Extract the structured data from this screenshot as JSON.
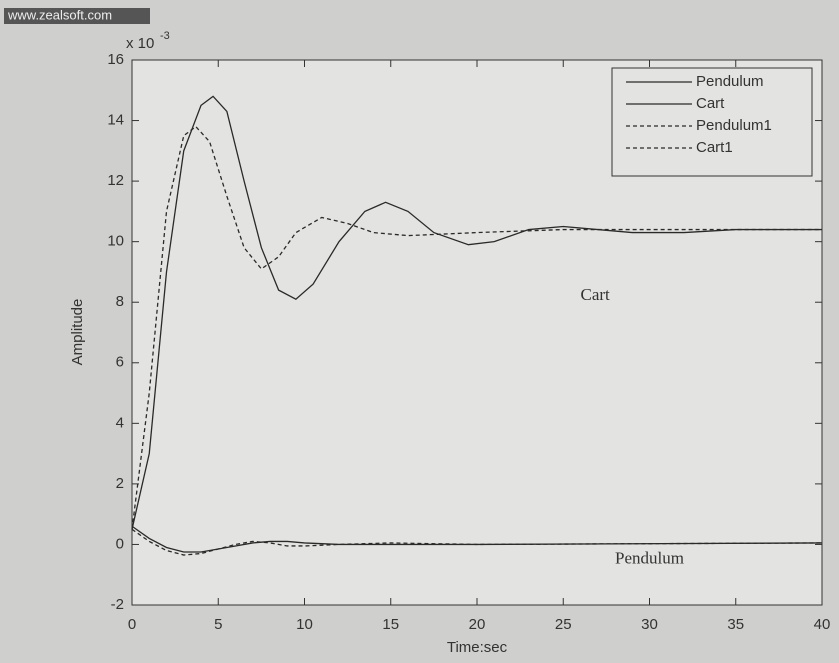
{
  "chart_data": {
    "type": "line",
    "watermark": "www.zealsoft.com",
    "xlabel": "Time:sec",
    "ylabel": "Amplitude",
    "y_scale_label": "x 10",
    "y_scale_exponent": "-3",
    "xlim": [
      0,
      40
    ],
    "ylim": [
      -2,
      16
    ],
    "xticks": [
      0,
      5,
      10,
      15,
      20,
      25,
      30,
      35,
      40
    ],
    "yticks": [
      -2,
      0,
      2,
      4,
      6,
      8,
      10,
      12,
      14,
      16
    ],
    "legend": "upper right",
    "annotations": [
      {
        "text": "Cart",
        "x": 26,
        "y": 8.2
      },
      {
        "text": "Pendulum",
        "x": 28,
        "y": -0.5
      }
    ],
    "series": [
      {
        "name": "Pendulum",
        "color": "#2a2a2a",
        "linestyle": "solid",
        "x": [
          0,
          1,
          2,
          3,
          4,
          5,
          6,
          7,
          8,
          9,
          10,
          12,
          15,
          20,
          40
        ],
        "values": [
          0.6,
          0.2,
          -0.1,
          -0.25,
          -0.25,
          -0.15,
          -0.05,
          0.05,
          0.1,
          0.1,
          0.05,
          0,
          0,
          0,
          0.05
        ]
      },
      {
        "name": "Cart",
        "color": "#2a2a2a",
        "linestyle": "solid",
        "x": [
          0,
          1,
          2,
          3,
          4,
          4.7,
          5.5,
          6.5,
          7.5,
          8.5,
          9.5,
          10.5,
          12,
          13.5,
          14.7,
          16,
          17.5,
          19.5,
          21,
          23,
          25,
          27,
          29,
          32,
          35,
          40
        ],
        "values": [
          0.5,
          3,
          9,
          13,
          14.5,
          14.8,
          14.3,
          12,
          9.8,
          8.4,
          8.1,
          8.6,
          10,
          11,
          11.3,
          11,
          10.3,
          9.9,
          10,
          10.4,
          10.5,
          10.4,
          10.3,
          10.3,
          10.4,
          10.4
        ]
      },
      {
        "name": "Pendulum1",
        "color": "#2a2a2a",
        "linestyle": "dashed",
        "x": [
          0,
          1,
          2,
          3,
          4,
          5,
          6,
          7,
          8,
          9,
          10,
          12,
          15,
          20,
          40
        ],
        "values": [
          0.5,
          0.1,
          -0.2,
          -0.35,
          -0.3,
          -0.15,
          0,
          0.1,
          0.05,
          -0.05,
          -0.05,
          0,
          0.05,
          0,
          0.05
        ]
      },
      {
        "name": "Cart1",
        "color": "#2a2a2a",
        "linestyle": "dashed",
        "x": [
          0,
          1,
          2,
          3,
          3.7,
          4.5,
          5.5,
          6.5,
          7.5,
          8.5,
          9.5,
          11,
          12.5,
          14,
          16,
          20,
          25,
          30,
          40
        ],
        "values": [
          0.5,
          5,
          11,
          13.5,
          13.8,
          13.3,
          11.5,
          9.8,
          9.1,
          9.5,
          10.3,
          10.8,
          10.6,
          10.3,
          10.2,
          10.3,
          10.4,
          10.4,
          10.4
        ]
      }
    ]
  }
}
